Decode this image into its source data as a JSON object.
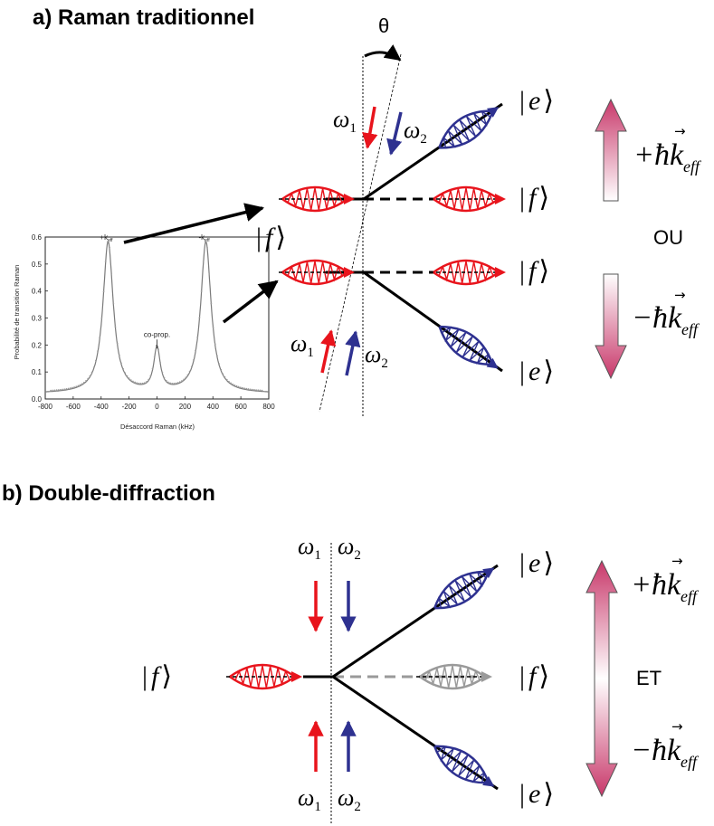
{
  "section_a": {
    "title": "a) Raman traditionnel"
  },
  "section_b": {
    "title": "b) Double-diffraction"
  },
  "labels": {
    "theta": "θ",
    "omega": "ω",
    "sub1": "1",
    "sub2": "2",
    "ket_f": "f",
    "ket_e": "e",
    "plus_hbar_k": "+ħk",
    "minus_hbar_k": "−ħk",
    "k_arrow": "→",
    "eff": "eff",
    "ou": "OU",
    "et": "ET"
  },
  "colors": {
    "red": "#e8141c",
    "blue": "#2e3190",
    "gray": "#9a9a9a",
    "momentum_dark": "#c8386a",
    "momentum_light": "#ffffff"
  },
  "chart_data": {
    "type": "line",
    "ylabel": "Probabilité de transition Raman",
    "xlabel": "Désaccord Raman (kHz)",
    "xlim": [
      -800,
      800
    ],
    "ylim": [
      0,
      0.6
    ],
    "xticks": [
      -800,
      -600,
      -400,
      -200,
      0,
      200,
      400,
      600,
      800
    ],
    "yticks": [
      0.0,
      0.1,
      0.2,
      0.3,
      0.4,
      0.5,
      0.6
    ],
    "annotations": [
      {
        "text": "+k",
        "sub": "eff",
        "x": -350,
        "y": 0.58
      },
      {
        "text": "-k",
        "sub": "eff",
        "x": 350,
        "y": 0.58
      },
      {
        "text": "co-prop.",
        "x": 0,
        "y": 0.18
      }
    ],
    "peaks": [
      {
        "center": -350,
        "height": 0.58,
        "width": 45
      },
      {
        "center": 0,
        "height": 0.18,
        "width": 28
      },
      {
        "center": 350,
        "height": 0.58,
        "width": 45
      }
    ],
    "baseline": 0.02
  }
}
